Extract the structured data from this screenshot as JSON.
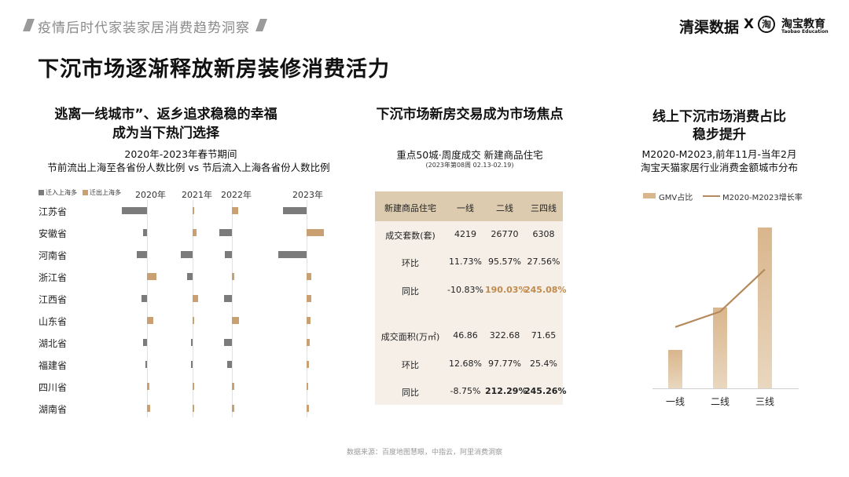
{
  "header": {
    "section": "疫情后时代家装家居消费趋势洞察",
    "brand": "清渠数据",
    "brand_sep": "X",
    "partner_logo_char": "淘",
    "partner_cn": "淘宝教育",
    "partner_en": "Taobao Education"
  },
  "page_title": "下沉市场逐渐释放新房装修消费活力",
  "left": {
    "title_line1": "逃离一线城市”、返乡追求稳稳的幸福",
    "title_line2": "成为当下热门选择",
    "sub_line1": "2020年-2023年春节期间",
    "sub_line2": "节前流出上海至各省份人数比例 vs 节后流入上海各省份人数比例",
    "chart_data": {
      "type": "bar",
      "legend": [
        "迁入上海多",
        "迁出上海多"
      ],
      "colors": {
        "inflow": "#7b7b7b",
        "outflow": "#c9a071"
      },
      "years": [
        "2020年",
        "2021年",
        "2022年",
        "2023年"
      ],
      "provinces": [
        "江苏省",
        "安徽省",
        "河南省",
        "浙江省",
        "江西省",
        "山东省",
        "湖北省",
        "福建省",
        "四川省",
        "湖南省"
      ],
      "values": {
        "2020年": [
          -10.0,
          -1.7,
          -4.2,
          3.7,
          -2.1,
          2.4,
          -1.6,
          -0.6,
          0.9,
          1.1
        ],
        "2021年": [
          0.6,
          1.6,
          -4.8,
          -2.3,
          2.1,
          0.4,
          -0.5,
          -0.3,
          0.4,
          0.3
        ],
        "2022年": [
          2.5,
          -5.0,
          -2.7,
          0.8,
          -3.0,
          2.7,
          -3.0,
          -1.8,
          0.8,
          0.9
        ],
        "2023年": [
          -9.5,
          6.8,
          -11.4,
          2.0,
          1.9,
          1.6,
          1.4,
          0.8,
          0.7,
          0.9
        ]
      },
      "note": "negative = 迁入上海多 (grey, left); positive = 迁出上海多 (gold, right); unitless approximate proportions"
    }
  },
  "middle": {
    "title": "下沉市场新房交易成为市场焦点",
    "sub": "重点50城·周度成交  新建商品住宅",
    "sub_small": "(2023年第08周 02.13-02.19)",
    "table": {
      "header": [
        "新建商品住宅",
        "一线",
        "二线",
        "三四线"
      ],
      "rows": [
        [
          "成交套数(套)",
          "4219",
          "26770",
          "6308"
        ],
        [
          "环比",
          "11.73%",
          "95.57%",
          "27.56%"
        ],
        [
          "同比",
          "-10.83%",
          "190.03%",
          "245.08%"
        ],
        [
          "成交面积(万㎡)",
          "46.86",
          "322.68",
          "71.65"
        ],
        [
          "环比",
          "12.68%",
          "97.77%",
          "25.4%"
        ],
        [
          "同比",
          "-8.75%",
          "212.29%",
          "245.26%"
        ]
      ]
    }
  },
  "right": {
    "title_line1": "线上下沉市场消费占比",
    "title_line2": "稳步提升",
    "sub_line1": "M2020-M2023,前年11月-当年2月",
    "sub_line2": "淘宝天猫家居行业消费金额城市分布",
    "chart_data": {
      "type": "bar",
      "categories": [
        "一线",
        "二线",
        "三线"
      ],
      "series": [
        {
          "name": "GMV占比",
          "kind": "bar",
          "values": [
            1.0,
            2.1,
            4.2
          ]
        },
        {
          "name": "M2020-M2023增长率",
          "kind": "line",
          "values": [
            1.6,
            2.0,
            3.1
          ]
        }
      ],
      "ylim": [
        0,
        4.5
      ],
      "colors": {
        "bar": "#d9b68c",
        "line": "#b48a5c"
      }
    }
  },
  "source": "数据来源：百度地图慧眼，中指云，阿里消费洞察"
}
